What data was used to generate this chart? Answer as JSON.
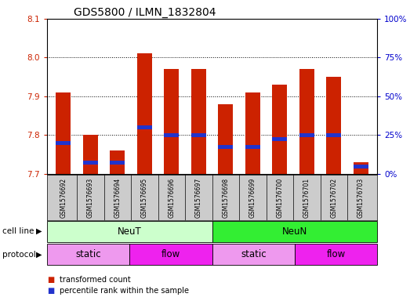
{
  "title": "GDS5800 / ILMN_1832804",
  "samples": [
    "GSM1576692",
    "GSM1576693",
    "GSM1576694",
    "GSM1576695",
    "GSM1576696",
    "GSM1576697",
    "GSM1576698",
    "GSM1576699",
    "GSM1576700",
    "GSM1576701",
    "GSM1576702",
    "GSM1576703"
  ],
  "transformed_count": [
    7.91,
    7.8,
    7.76,
    8.01,
    7.97,
    7.97,
    7.88,
    7.91,
    7.93,
    7.97,
    7.95,
    7.73
  ],
  "percentile_rank": [
    7.78,
    7.73,
    7.73,
    7.82,
    7.8,
    7.8,
    7.77,
    7.77,
    7.79,
    7.8,
    7.8,
    7.72
  ],
  "ylim_left": [
    7.7,
    8.1
  ],
  "ylim_right": [
    0,
    100
  ],
  "yticks_left": [
    7.7,
    7.8,
    7.9,
    8.0,
    8.1
  ],
  "yticks_right": [
    0,
    25,
    50,
    75,
    100
  ],
  "bar_color": "#cc2200",
  "percentile_color": "#2233cc",
  "bar_width": 0.55,
  "cell_line_groups": [
    {
      "label": "NeuT",
      "start": 0,
      "end": 5,
      "color": "#ccffcc"
    },
    {
      "label": "NeuN",
      "start": 6,
      "end": 11,
      "color": "#33ee33"
    }
  ],
  "protocol_groups": [
    {
      "label": "static",
      "start": 0,
      "end": 2,
      "color": "#ee99ee"
    },
    {
      "label": "flow",
      "start": 3,
      "end": 5,
      "color": "#ee22ee"
    },
    {
      "label": "static",
      "start": 6,
      "end": 8,
      "color": "#ee99ee"
    },
    {
      "label": "flow",
      "start": 9,
      "end": 11,
      "color": "#ee22ee"
    }
  ],
  "background_color": "#ffffff",
  "plot_bg_color": "#ffffff",
  "tick_label_color_left": "#cc2200",
  "tick_label_color_right": "#0000cc",
  "sample_bg_color": "#cccccc",
  "cell_line_label": "cell line",
  "protocol_label": "protocol",
  "legend_items": [
    {
      "label": "transformed count",
      "color": "#cc2200"
    },
    {
      "label": "percentile rank within the sample",
      "color": "#2233cc"
    }
  ]
}
